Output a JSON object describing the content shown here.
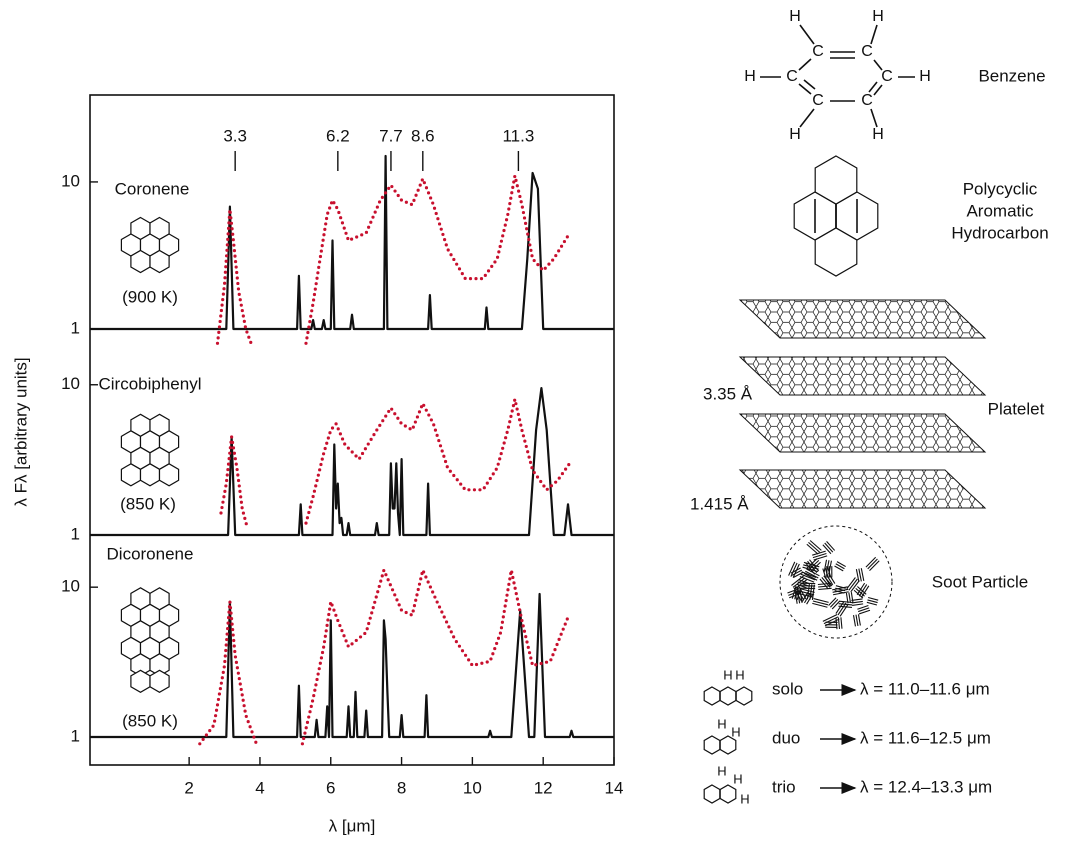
{
  "chart_data": [
    {
      "type": "line",
      "log": true,
      "name": "Coronene",
      "temperature": "(900 K)",
      "xlim": [
        -0.8,
        14
      ],
      "ylim": [
        1,
        39
      ],
      "yticks": [
        1,
        10
      ],
      "peak_labels": [
        3.3,
        6.2,
        7.7,
        8.6,
        11.3
      ],
      "series": [
        {
          "color": "#111111",
          "style": "solid",
          "x": [
            -0.8,
            3.05,
            3.15,
            3.25,
            5.05,
            5.1,
            5.15,
            5.45,
            5.5,
            5.55,
            5.75,
            5.8,
            5.85,
            6.0,
            6.05,
            6.1,
            6.55,
            6.6,
            6.65,
            7.5,
            7.55,
            7.6,
            8.75,
            8.8,
            8.85,
            10.35,
            10.4,
            10.45,
            11.4,
            11.55,
            11.7,
            11.85,
            12.0,
            14
          ],
          "values": [
            1,
            1,
            6.8,
            1,
            1,
            2.3,
            1,
            1,
            1.15,
            1,
            1,
            1.15,
            1,
            1,
            4,
            1,
            1,
            1.25,
            1,
            1,
            15,
            1,
            1,
            1.7,
            1,
            1,
            1.4,
            1,
            1,
            3,
            11.5,
            9,
            1,
            1
          ]
        },
        {
          "color": "#c8102e",
          "style": "dotted",
          "x": [
            2.8,
            3.0,
            3.15,
            3.25,
            3.4,
            3.6,
            3.75,
            4.5,
            5.3,
            5.5,
            5.7,
            5.9,
            6.05,
            6.2,
            6.5,
            7.0,
            7.4,
            7.7,
            8.0,
            8.3,
            8.6,
            8.9,
            9.3,
            9.8,
            10.3,
            10.7,
            11.0,
            11.2,
            11.4,
            11.7,
            12.0,
            12.3,
            12.7
          ],
          "values": [
            0.8,
            2,
            6.5,
            4,
            1.8,
            1,
            0.8,
            null,
            0.8,
            1.5,
            3,
            6,
            7.5,
            6.5,
            4,
            4.5,
            7.5,
            9.5,
            7.5,
            7,
            10.5,
            7,
            3.5,
            2.2,
            2.2,
            3,
            6,
            11,
            7,
            3,
            2.5,
            3,
            4.3
          ]
        }
      ]
    },
    {
      "type": "line",
      "log": true,
      "name": "Circobiphenyl",
      "temperature": "(850 K)",
      "ylabel": "λ Fλ [arbitrary units]",
      "xlim": [
        -0.8,
        14
      ],
      "ylim": [
        1,
        23.5
      ],
      "yticks": [
        1,
        10
      ],
      "series": [
        {
          "color": "#111111",
          "style": "solid",
          "x": [
            -0.8,
            3.1,
            3.2,
            3.3,
            5.1,
            5.15,
            5.2,
            6.05,
            6.1,
            6.15,
            6.2,
            6.25,
            6.3,
            6.35,
            6.45,
            6.5,
            6.55,
            7.25,
            7.3,
            7.35,
            7.65,
            7.7,
            7.75,
            7.8,
            7.85,
            7.9,
            7.95,
            8.0,
            8.05,
            8.7,
            8.75,
            8.8,
            11.6,
            11.8,
            11.95,
            12.1,
            12.3,
            12.6,
            12.7,
            12.8,
            14
          ],
          "values": [
            1,
            1,
            4.5,
            1,
            1,
            1.6,
            1,
            1,
            4,
            1.5,
            2.2,
            1.2,
            1.3,
            1,
            1,
            1.2,
            1,
            1,
            1.2,
            1,
            1,
            3,
            1.5,
            1.5,
            3,
            1.4,
            1,
            3.2,
            1,
            1,
            2.2,
            1,
            1,
            5,
            9.5,
            5,
            1,
            1,
            1.6,
            1,
            1
          ]
        },
        {
          "color": "#c8102e",
          "style": "dotted",
          "x": [
            2.9,
            3.05,
            3.2,
            3.35,
            3.5,
            3.65,
            4.5,
            5.3,
            5.5,
            5.8,
            6.0,
            6.15,
            6.4,
            6.8,
            7.3,
            7.7,
            8.0,
            8.3,
            8.6,
            8.9,
            9.3,
            9.8,
            10.3,
            10.7,
            11.0,
            11.2,
            11.4,
            11.7,
            12.1,
            12.4,
            12.75
          ],
          "values": [
            1.4,
            2.2,
            4.5,
            2.8,
            1.5,
            1.1,
            null,
            1.2,
            1.8,
            3.5,
            5,
            5.5,
            4,
            3.2,
            5,
            7,
            5.5,
            5,
            7.5,
            5.5,
            2.8,
            2,
            2,
            2.8,
            5,
            8,
            5,
            2.7,
            2,
            2.3,
            3
          ]
        }
      ]
    },
    {
      "type": "line",
      "log": true,
      "name": "Dicoronene",
      "temperature": "(850 K)",
      "xlabel": "λ [μm]",
      "xlim": [
        -0.8,
        14
      ],
      "xticks": [
        2,
        4,
        6,
        8,
        10,
        12,
        14
      ],
      "ylim": [
        0.65,
        22.3
      ],
      "yticks": [
        1,
        10
      ],
      "series": [
        {
          "color": "#111111",
          "style": "solid",
          "x": [
            -0.8,
            3.05,
            3.15,
            3.25,
            5.05,
            5.1,
            5.15,
            5.55,
            5.6,
            5.65,
            5.85,
            5.9,
            5.95,
            6.0,
            6.05,
            6.1,
            6.45,
            6.5,
            6.55,
            6.65,
            6.7,
            6.75,
            6.95,
            7.0,
            7.05,
            7.45,
            7.5,
            7.55,
            7.6,
            7.65,
            7.95,
            8.0,
            8.05,
            8.65,
            8.7,
            8.75,
            10.45,
            10.5,
            10.55,
            11.1,
            11.35,
            11.6,
            11.75,
            11.9,
            12.05,
            12.75,
            12.8,
            12.85,
            14
          ],
          "values": [
            1,
            1,
            8,
            1,
            1,
            2.2,
            1,
            1,
            1.3,
            1,
            1,
            1.6,
            1,
            6,
            1,
            1,
            1,
            1.6,
            1,
            1,
            2,
            1,
            1,
            1.5,
            1,
            1,
            6,
            4.5,
            2,
            1,
            1,
            1.4,
            1,
            1,
            1.9,
            1,
            1,
            1.1,
            1,
            1,
            7,
            1,
            1,
            9,
            1,
            1,
            1.1,
            1,
            1
          ]
        },
        {
          "color": "#c8102e",
          "style": "dotted",
          "x": [
            2.3,
            2.7,
            3.0,
            3.15,
            3.3,
            3.6,
            3.9,
            4.5,
            5.2,
            5.5,
            5.8,
            6.0,
            6.2,
            6.5,
            7.0,
            7.5,
            8.0,
            8.3,
            8.6,
            9.0,
            9.5,
            10.0,
            10.5,
            10.8,
            11.1,
            11.4,
            11.7,
            12.2,
            12.7
          ],
          "values": [
            0.9,
            1.2,
            3,
            8,
            3.5,
            1.4,
            0.9,
            null,
            0.9,
            1.8,
            4,
            8,
            6,
            4,
            5,
            13,
            7,
            6.5,
            13,
            8,
            4.5,
            3,
            3.2,
            5,
            13,
            6,
            3,
            3.2,
            6.3
          ]
        }
      ]
    }
  ],
  "diagram": {
    "benzene": {
      "name": "Benzene",
      "atoms": [
        "H",
        "H",
        "C",
        "C",
        "H",
        "C",
        "C",
        "H",
        "C",
        "C",
        "H",
        "H"
      ]
    },
    "pah": {
      "name": [
        "Polycyclic",
        "Aromatic",
        "Hydrocarbon"
      ]
    },
    "platelet": {
      "name": "Platelet",
      "spacing": "3.35 Å",
      "bond": "1.415 Å"
    },
    "soot": {
      "name": "Soot Particle"
    },
    "modes": [
      {
        "label": "solo",
        "atoms": [
          "H",
          "H"
        ],
        "range": "λ = 11.0–11.6 μm"
      },
      {
        "label": "duo",
        "atoms": [
          "H",
          "H"
        ],
        "range": "λ = 11.6–12.5 μm"
      },
      {
        "label": "trio",
        "atoms": [
          "H",
          "H",
          "H"
        ],
        "range": "λ = 12.4–13.3 μm"
      }
    ]
  }
}
